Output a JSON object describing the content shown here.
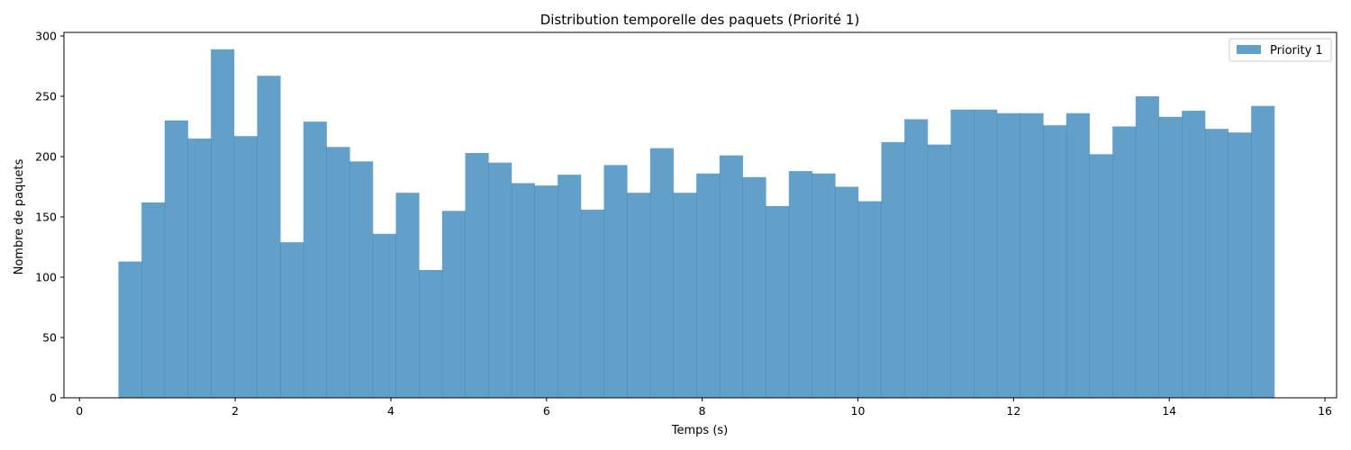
{
  "chart_data": {
    "type": "bar",
    "title": "Distribution temporelle des paquets (Priorité 1)",
    "xlabel": "Temps (s)",
    "ylabel": "Nombre de paquets",
    "xlim": [
      -0.2,
      16.15
    ],
    "ylim": [
      0,
      303
    ],
    "xticks": [
      0,
      2,
      4,
      6,
      8,
      10,
      12,
      14,
      16
    ],
    "yticks": [
      0,
      50,
      100,
      150,
      200,
      250,
      300
    ],
    "grid": false,
    "legend": "top-right",
    "color": "#1f77b4",
    "opacity": 0.7,
    "bin_start": 0.5,
    "bin_width": 0.297,
    "series": [
      {
        "name": "Priority 1",
        "values": [
          113,
          162,
          230,
          215,
          289,
          217,
          267,
          129,
          229,
          208,
          196,
          136,
          170,
          106,
          155,
          203,
          195,
          178,
          176,
          185,
          156,
          193,
          170,
          207,
          170,
          186,
          201,
          183,
          159,
          188,
          186,
          175,
          163,
          212,
          231,
          210,
          239,
          239,
          236,
          236,
          226,
          236,
          202,
          225,
          250,
          233,
          238,
          223,
          220,
          242
        ]
      }
    ]
  }
}
